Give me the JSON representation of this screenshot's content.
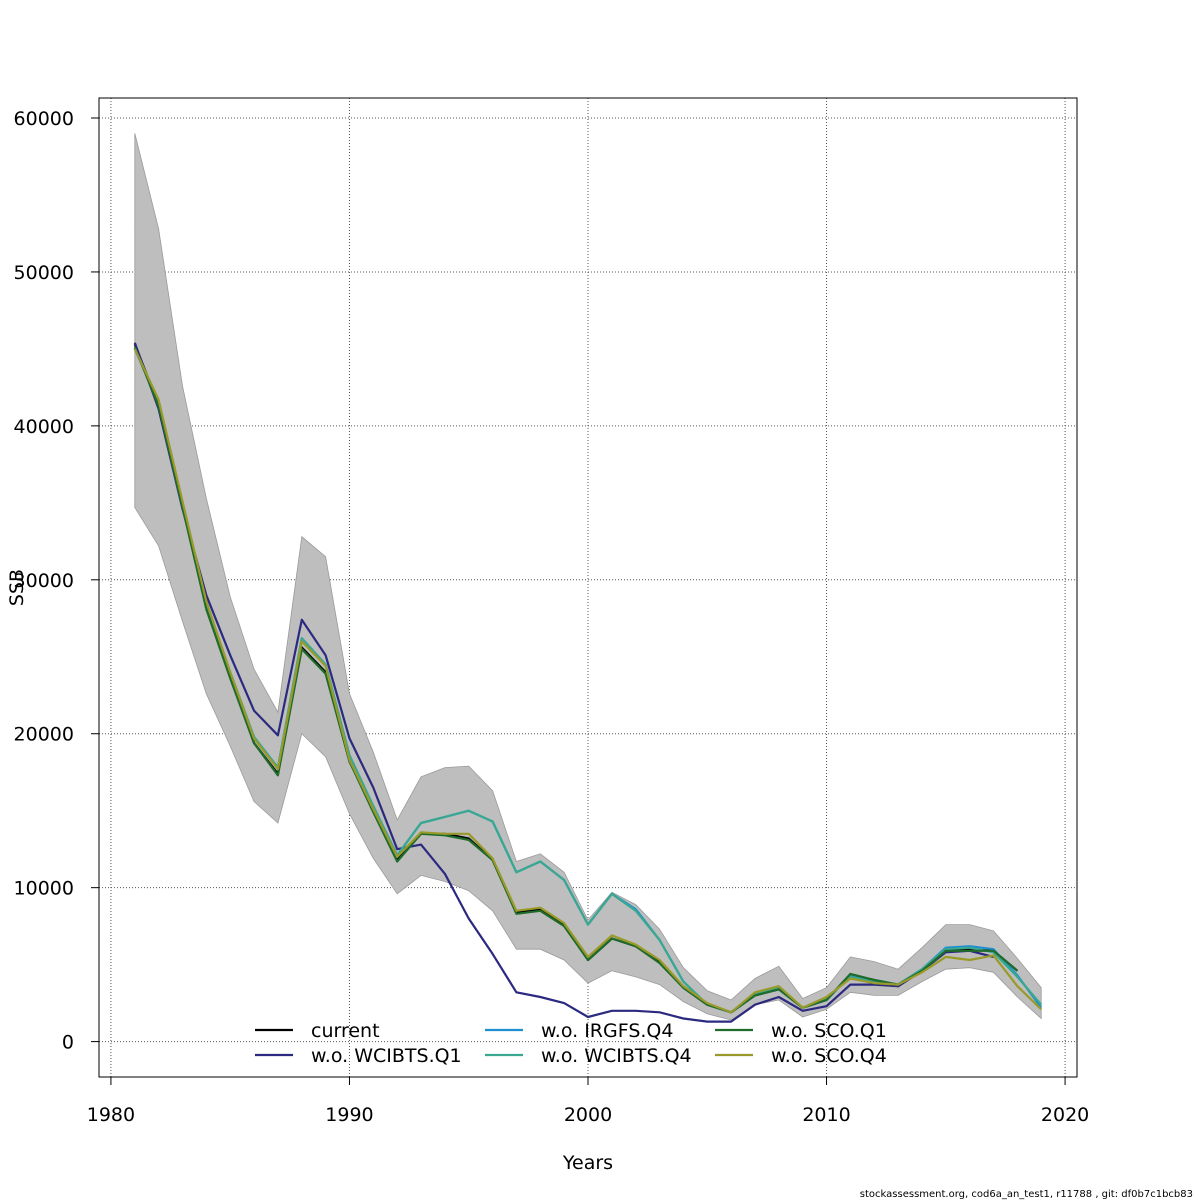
{
  "chart_data": {
    "type": "line",
    "title": "",
    "xlabel": "Years",
    "ylabel": "SSB",
    "xlim": [
      1979.5,
      2020.5
    ],
    "ylim": [
      -2300,
      61300
    ],
    "x_ticks": [
      1980,
      1990,
      2000,
      2010,
      2020
    ],
    "y_ticks": [
      0,
      10000,
      20000,
      30000,
      40000,
      50000,
      60000
    ],
    "grid": true,
    "x": [
      1981,
      1982,
      1983,
      1984,
      1985,
      1986,
      1987,
      1988,
      1989,
      1990,
      1991,
      1992,
      1993,
      1994,
      1995,
      1996,
      1997,
      1998,
      1999,
      2000,
      2001,
      2002,
      2003,
      2004,
      2005,
      2006,
      2007,
      2008,
      2009,
      2010,
      2011,
      2012,
      2013,
      2014,
      2015,
      2016,
      2017,
      2018,
      2019
    ],
    "band": {
      "color": "#bebebe",
      "lower": [
        34700,
        32200,
        27300,
        22600,
        19200,
        15600,
        14200,
        20000,
        18500,
        14800,
        11900,
        9600,
        10800,
        10400,
        9800,
        8500,
        6000,
        6000,
        5300,
        3800,
        4600,
        4200,
        3700,
        2600,
        1800,
        1400,
        2400,
        2700,
        1600,
        2100,
        3200,
        3000,
        3000,
        3900,
        4700,
        4800,
        4500,
        2900,
        1500
      ],
      "upper": [
        59000,
        52800,
        42600,
        35300,
        28900,
        24200,
        21400,
        32800,
        31500,
        22600,
        18800,
        14400,
        17200,
        17800,
        17900,
        16300,
        11700,
        12200,
        11000,
        7900,
        9700,
        8900,
        7300,
        4800,
        3300,
        2700,
        4100,
        4900,
        2800,
        3500,
        5500,
        5200,
        4700,
        6100,
        7600,
        7600,
        7200,
        5400,
        3500
      ]
    },
    "series": [
      {
        "name": "current",
        "color": "#000000",
        "values": [
          45300,
          41400,
          35000,
          28300,
          23700,
          19400,
          17400,
          25600,
          24000,
          18200,
          15000,
          11800,
          13500,
          13500,
          13200,
          11800,
          8400,
          8600,
          7600,
          5300,
          6700,
          6200,
          5200,
          3500,
          2400,
          1900,
          3000,
          3400,
          2200,
          2700,
          4300,
          4000,
          3600,
          4600,
          5900,
          6000,
          5900,
          4600,
          null
        ]
      },
      {
        "name": "w.o. WCIBTS.Q1",
        "color": "#2b2a80",
        "values": [
          45400,
          41100,
          34600,
          29000,
          25100,
          21500,
          19900,
          27400,
          25100,
          19700,
          16500,
          12500,
          12800,
          10900,
          8000,
          5700,
          3200,
          2900,
          2500,
          1600,
          2000,
          2000,
          1900,
          1500,
          1300,
          1300,
          2400,
          2900,
          2000,
          2300,
          3700,
          3700,
          3600,
          4600,
          5800,
          5900,
          5500,
          null,
          null
        ]
      },
      {
        "name": "w.o. IRGFS.Q4",
        "color": "#1e8fd0",
        "values": [
          45000,
          41600,
          34800,
          28500,
          24000,
          19800,
          17800,
          26200,
          24500,
          18600,
          15300,
          12100,
          14200,
          14600,
          15000,
          14300,
          11000,
          11700,
          10500,
          7600,
          9600,
          8600,
          6600,
          3900,
          2400,
          1900,
          3000,
          3400,
          2200,
          2700,
          4300,
          4000,
          3700,
          4700,
          6100,
          6200,
          6000,
          4300,
          2200
        ]
      },
      {
        "name": "w.o. WCIBTS.Q4",
        "color": "#3aa891",
        "values": [
          45000,
          41600,
          34800,
          28500,
          24000,
          19800,
          17800,
          26200,
          24500,
          18600,
          15300,
          12100,
          14200,
          14600,
          15000,
          14300,
          11000,
          11700,
          10500,
          7600,
          9600,
          8500,
          6600,
          3900,
          2400,
          1900,
          3100,
          3500,
          2200,
          2800,
          4200,
          3900,
          3700,
          4700,
          6000,
          6100,
          5800,
          4200,
          2400
        ]
      },
      {
        "name": "w.o. SCO.Q1",
        "color": "#1f6b2a",
        "values": [
          45100,
          41300,
          34700,
          28100,
          23600,
          19400,
          17300,
          25500,
          23900,
          18200,
          14900,
          11700,
          13500,
          13400,
          13100,
          11800,
          8300,
          8500,
          7500,
          5300,
          6700,
          6200,
          5100,
          3500,
          2400,
          1900,
          3000,
          3400,
          2200,
          2700,
          4400,
          4000,
          3700,
          4600,
          5900,
          5900,
          5900,
          4600,
          null
        ]
      },
      {
        "name": "w.o. SCO.Q4",
        "color": "#9a9a2a",
        "values": [
          45000,
          41700,
          35100,
          28600,
          24000,
          19700,
          17700,
          26000,
          24400,
          18300,
          15100,
          12000,
          13600,
          13500,
          13500,
          11900,
          8500,
          8700,
          7700,
          5500,
          6900,
          6300,
          5300,
          3600,
          2500,
          1900,
          3200,
          3600,
          2200,
          2900,
          4100,
          3800,
          3700,
          4500,
          5500,
          5300,
          5600,
          3600,
          2100
        ]
      }
    ],
    "legend_placement": "bottom-center"
  },
  "footer": "stockassessment.org, cod6a_an_test1, r11788 , git: df0b7c1bcb83"
}
